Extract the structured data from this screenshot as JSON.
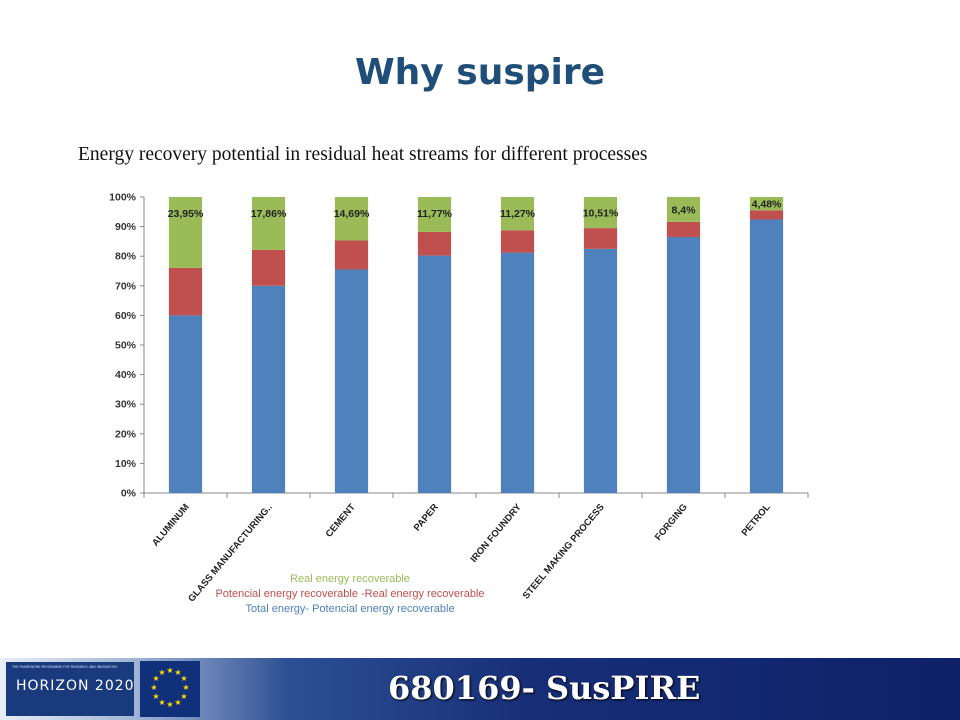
{
  "slide": {
    "title": "Why suspire",
    "subtitle": "Energy recovery potential in residual heat streams for different processes"
  },
  "chart_data": {
    "type": "bar",
    "stacked": true,
    "categories": [
      "ALUMINUM",
      "GLASS MANUFACTURING..",
      "CEMENT",
      "PAPER",
      "IRON FOUNDRY",
      "STEEL MAKING PROCESS",
      "FORGING",
      "PETROL"
    ],
    "series": [
      {
        "name": "Total energy- Potencial energy recoverable",
        "color": "#4f81bd",
        "values": [
          60,
          70,
          75.5,
          80.2,
          81.2,
          82.5,
          86.5,
          92.4
        ]
      },
      {
        "name": "Potencial energy recoverable -Real energy recoverable",
        "color": "#c0504d",
        "values": [
          16.05,
          12.14,
          9.81,
          8.03,
          7.53,
          6.99,
          5.1,
          3.12
        ]
      },
      {
        "name": "Real energy recoverable",
        "color": "#9bbb59",
        "values": [
          23.95,
          17.86,
          14.69,
          11.77,
          11.27,
          10.51,
          8.4,
          4.48
        ]
      }
    ],
    "data_labels": [
      "23,95%",
      "17,86%",
      "14,69%",
      "11,77%",
      "11,27%",
      "10,51%",
      "8,4%",
      "4,48%"
    ],
    "ylim": [
      0,
      100
    ],
    "yticks": [
      "0%",
      "10%",
      "20%",
      "30%",
      "40%",
      "50%",
      "60%",
      "70%",
      "80%",
      "90%",
      "100%"
    ],
    "legend": [
      {
        "label": "Real energy recoverable",
        "color": "#9bbb59"
      },
      {
        "label": "Potencial energy recoverable -Real energy recoverable",
        "color": "#c0504d"
      },
      {
        "label": "Total energy- Potencial energy recoverable",
        "color": "#4f81bd"
      }
    ],
    "legend_position": "bottom",
    "grid": false
  },
  "footer": {
    "program_tagline": "THE FRAMEWORK PROGRAMME FOR RESEARCH AND INNOVATION",
    "program_name": "HORIZON 2020",
    "project": "680169- SusPIRE"
  }
}
